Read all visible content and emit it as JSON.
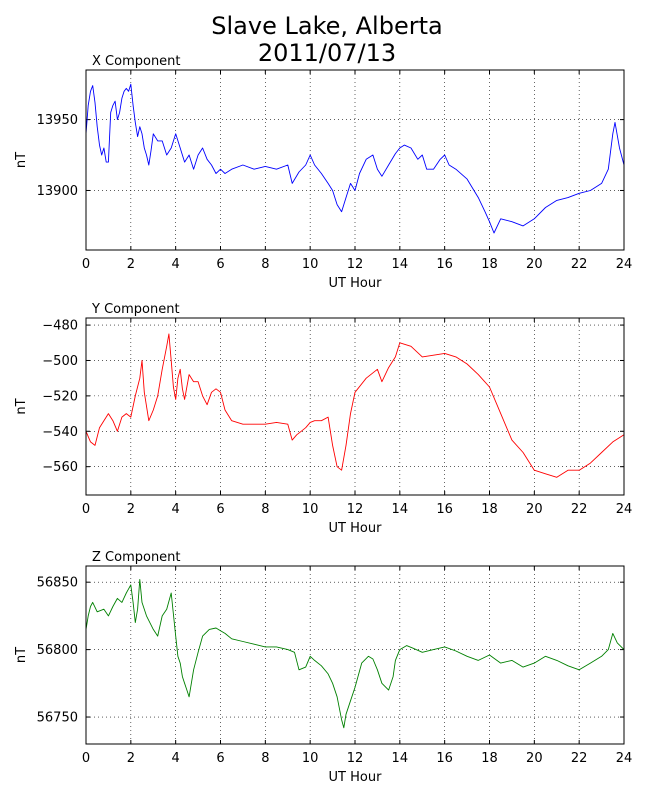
{
  "figure": {
    "title_line1": "Slave Lake, Alberta",
    "title_line2": "2011/07/13"
  },
  "chart_data": [
    {
      "type": "line",
      "title": "X Component",
      "xlabel": "UT Hour",
      "ylabel": "nT",
      "xlim": [
        0,
        24
      ],
      "ylim": [
        13858,
        13985
      ],
      "xticks": [
        0,
        2,
        4,
        6,
        8,
        10,
        12,
        14,
        16,
        18,
        20,
        22,
        24
      ],
      "yticks": [
        13900,
        13950
      ],
      "grid": true,
      "series": [
        {
          "color": "#0000ff",
          "x": [
            0,
            0.1,
            0.2,
            0.3,
            0.4,
            0.5,
            0.6,
            0.7,
            0.8,
            0.9,
            1.0,
            1.1,
            1.2,
            1.3,
            1.4,
            1.5,
            1.6,
            1.7,
            1.8,
            1.9,
            2.0,
            2.1,
            2.2,
            2.3,
            2.4,
            2.5,
            2.6,
            2.7,
            2.8,
            2.9,
            3.0,
            3.2,
            3.4,
            3.6,
            3.8,
            4.0,
            4.2,
            4.4,
            4.6,
            4.8,
            5.0,
            5.2,
            5.4,
            5.6,
            5.8,
            6.0,
            6.2,
            6.5,
            7.0,
            7.5,
            8.0,
            8.5,
            9.0,
            9.2,
            9.5,
            9.8,
            10.0,
            10.2,
            10.5,
            10.8,
            11.0,
            11.2,
            11.4,
            11.6,
            11.8,
            12.0,
            12.2,
            12.5,
            12.8,
            13.0,
            13.2,
            13.5,
            13.8,
            14.0,
            14.2,
            14.5,
            14.8,
            15.0,
            15.2,
            15.5,
            15.8,
            16.0,
            16.2,
            16.5,
            17.0,
            17.5,
            17.8,
            18.0,
            18.2,
            18.5,
            19.0,
            19.5,
            20.0,
            20.5,
            21.0,
            21.5,
            22.0,
            22.5,
            23.0,
            23.3,
            23.5,
            23.6,
            23.8,
            24.0
          ],
          "y": [
            13940,
            13960,
            13970,
            13974,
            13962,
            13945,
            13932,
            13925,
            13930,
            13920,
            13920,
            13955,
            13960,
            13963,
            13950,
            13955,
            13965,
            13970,
            13972,
            13970,
            13975,
            13960,
            13948,
            13938,
            13945,
            13940,
            13930,
            13925,
            13918,
            13928,
            13940,
            13935,
            13935,
            13925,
            13930,
            13940,
            13930,
            13920,
            13925,
            13915,
            13925,
            13930,
            13922,
            13918,
            13912,
            13915,
            13912,
            13915,
            13918,
            13915,
            13917,
            13915,
            13918,
            13905,
            13913,
            13918,
            13925,
            13918,
            13912,
            13905,
            13900,
            13890,
            13885,
            13895,
            13905,
            13900,
            13912,
            13922,
            13925,
            13915,
            13910,
            13918,
            13926,
            13930,
            13932,
            13930,
            13922,
            13925,
            13915,
            13915,
            13922,
            13925,
            13918,
            13915,
            13908,
            13895,
            13885,
            13878,
            13870,
            13880,
            13878,
            13875,
            13880,
            13888,
            13893,
            13895,
            13898,
            13900,
            13905,
            13915,
            13940,
            13948,
            13930,
            13918
          ]
        }
      ]
    },
    {
      "type": "line",
      "title": "Y Component",
      "xlabel": "UT Hour",
      "ylabel": "nT",
      "xlim": [
        0,
        24
      ],
      "ylim": [
        -576,
        -476
      ],
      "xticks": [
        0,
        2,
        4,
        6,
        8,
        10,
        12,
        14,
        16,
        18,
        20,
        22,
        24
      ],
      "yticks": [
        -480,
        -500,
        -520,
        -540,
        -560
      ],
      "grid": true,
      "series": [
        {
          "color": "#ff0000",
          "x": [
            0,
            0.2,
            0.4,
            0.6,
            0.8,
            1.0,
            1.2,
            1.4,
            1.6,
            1.8,
            2.0,
            2.2,
            2.4,
            2.5,
            2.6,
            2.8,
            3.0,
            3.2,
            3.4,
            3.6,
            3.7,
            3.8,
            3.9,
            4.0,
            4.1,
            4.2,
            4.3,
            4.4,
            4.6,
            4.8,
            5.0,
            5.2,
            5.4,
            5.6,
            5.8,
            6.0,
            6.2,
            6.5,
            7.0,
            7.5,
            8.0,
            8.5,
            9.0,
            9.2,
            9.4,
            9.6,
            9.8,
            10.0,
            10.2,
            10.5,
            10.8,
            11.0,
            11.2,
            11.4,
            11.6,
            11.8,
            12.0,
            12.5,
            13.0,
            13.2,
            13.5,
            13.8,
            14.0,
            14.5,
            15.0,
            15.5,
            16.0,
            16.5,
            17.0,
            17.5,
            18.0,
            18.5,
            19.0,
            19.5,
            20.0,
            20.5,
            21.0,
            21.5,
            22.0,
            22.5,
            23.0,
            23.5,
            24.0
          ],
          "y": [
            -540,
            -546,
            -548,
            -538,
            -534,
            -530,
            -534,
            -540,
            -532,
            -530,
            -532,
            -520,
            -510,
            -500,
            -518,
            -534,
            -528,
            -520,
            -505,
            -492,
            -485,
            -500,
            -515,
            -522,
            -510,
            -505,
            -516,
            -522,
            -508,
            -512,
            -512,
            -520,
            -525,
            -518,
            -516,
            -518,
            -528,
            -534,
            -536,
            -536,
            -536,
            -535,
            -536,
            -545,
            -542,
            -540,
            -538,
            -535,
            -534,
            -534,
            -532,
            -548,
            -560,
            -562,
            -548,
            -530,
            -518,
            -510,
            -505,
            -512,
            -504,
            -498,
            -490,
            -492,
            -498,
            -497,
            -496,
            -498,
            -502,
            -508,
            -515,
            -530,
            -545,
            -552,
            -562,
            -564,
            -566,
            -562,
            -562,
            -558,
            -552,
            -546,
            -542
          ]
        }
      ]
    },
    {
      "type": "line",
      "title": "Z Component",
      "xlabel": "UT Hour",
      "ylabel": "nT",
      "xlim": [
        0,
        24
      ],
      "ylim": [
        56730,
        56862
      ],
      "xticks": [
        0,
        2,
        4,
        6,
        8,
        10,
        12,
        14,
        16,
        18,
        20,
        22,
        24
      ],
      "yticks": [
        56750,
        56800,
        56850
      ],
      "grid": true,
      "series": [
        {
          "color": "#008000",
          "x": [
            0,
            0.1,
            0.2,
            0.3,
            0.5,
            0.8,
            1.0,
            1.2,
            1.4,
            1.6,
            1.8,
            2.0,
            2.1,
            2.2,
            2.3,
            2.4,
            2.5,
            2.7,
            3.0,
            3.2,
            3.4,
            3.6,
            3.8,
            4.0,
            4.1,
            4.2,
            4.3,
            4.4,
            4.5,
            4.6,
            4.8,
            5.0,
            5.2,
            5.5,
            5.8,
            6.0,
            6.2,
            6.5,
            7.0,
            7.5,
            8.0,
            8.5,
            9.0,
            9.3,
            9.5,
            9.8,
            10.0,
            10.2,
            10.5,
            10.8,
            11.0,
            11.2,
            11.4,
            11.5,
            11.6,
            11.8,
            12.0,
            12.3,
            12.6,
            12.8,
            13.0,
            13.2,
            13.5,
            13.7,
            13.8,
            14.0,
            14.3,
            14.6,
            15.0,
            15.5,
            16.0,
            16.5,
            17.0,
            17.5,
            18.0,
            18.5,
            19.0,
            19.5,
            20.0,
            20.5,
            21.0,
            21.5,
            22.0,
            22.5,
            23.0,
            23.3,
            23.5,
            23.7,
            24.0
          ],
          "y": [
            56815,
            56825,
            56832,
            56835,
            56828,
            56830,
            56825,
            56832,
            56838,
            56835,
            56842,
            56848,
            56835,
            56820,
            56830,
            56852,
            56835,
            56825,
            56815,
            56810,
            56825,
            56830,
            56842,
            56810,
            56795,
            56790,
            56780,
            56775,
            56770,
            56765,
            56785,
            56798,
            56810,
            56815,
            56816,
            56814,
            56812,
            56808,
            56806,
            56804,
            56802,
            56802,
            56800,
            56798,
            56785,
            56787,
            56795,
            56792,
            56788,
            56782,
            56775,
            56765,
            56748,
            56742,
            56752,
            56762,
            56772,
            56790,
            56795,
            56793,
            56785,
            56775,
            56770,
            56780,
            56792,
            56800,
            56803,
            56801,
            56798,
            56800,
            56802,
            56799,
            56795,
            56792,
            56796,
            56790,
            56792,
            56787,
            56790,
            56795,
            56792,
            56788,
            56785,
            56790,
            56795,
            56800,
            56812,
            56805,
            56800
          ]
        }
      ]
    }
  ]
}
